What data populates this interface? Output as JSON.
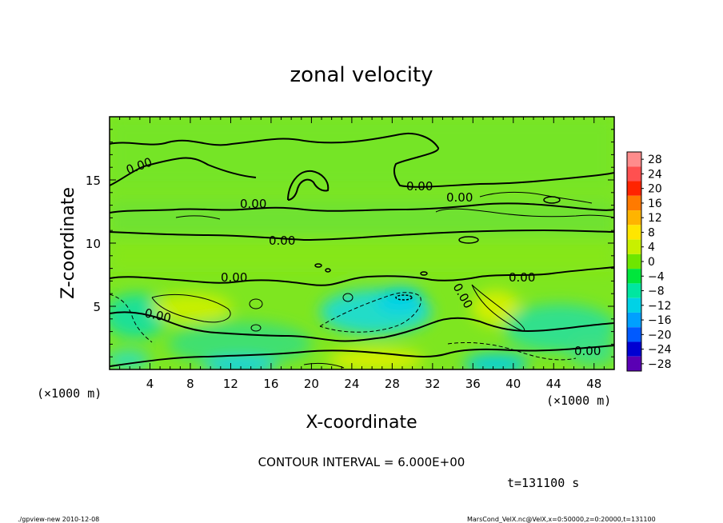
{
  "chart_data": {
    "type": "heatmap",
    "title": "zonal velocity",
    "xlabel": "X-coordinate",
    "ylabel": "Z-coordinate",
    "x_unit": "(×1000 m)",
    "y_unit": "(×1000 m)",
    "xlim": [
      0,
      50
    ],
    "ylim": [
      0,
      20
    ],
    "x_ticks": [
      4,
      8,
      12,
      16,
      20,
      24,
      28,
      32,
      36,
      40,
      44,
      48
    ],
    "y_ticks": [
      5,
      10,
      15
    ],
    "colorbar": {
      "levels": [
        28,
        24,
        20,
        16,
        12,
        8,
        4,
        0,
        -4,
        -8,
        -12,
        -16,
        -20,
        -24,
        -28
      ],
      "labels": [
        "28",
        "24",
        "20",
        "16",
        "12",
        "8",
        "4",
        "0",
        "−4",
        "−8",
        "−12",
        "−16",
        "−20",
        "−24",
        "−28"
      ],
      "colors": [
        "#ff8c8c",
        "#ff5050",
        "#ff2400",
        "#ff7a00",
        "#ffb400",
        "#ffe600",
        "#c8f000",
        "#6ee600",
        "#00e63c",
        "#00e6a0",
        "#00d2e6",
        "#00a0ff",
        "#005aff",
        "#0000d2",
        "#5a00b4"
      ]
    },
    "contour_labels": [
      "0.00",
      "0.00",
      "0.00",
      "0.00",
      "0.00",
      "0.00",
      "0.00",
      "0.00",
      "0.00",
      "0.00"
    ],
    "contour_interval_text": "CONTOUR INTERVAL = 6.000E+00",
    "time_text": "t=131100 s"
  },
  "footer": {
    "left": "./gpview-new  2010-12-08",
    "right": "MarsCond_VelX.nc@VelX,x=0:50000,z=0:20000,t=131100"
  }
}
